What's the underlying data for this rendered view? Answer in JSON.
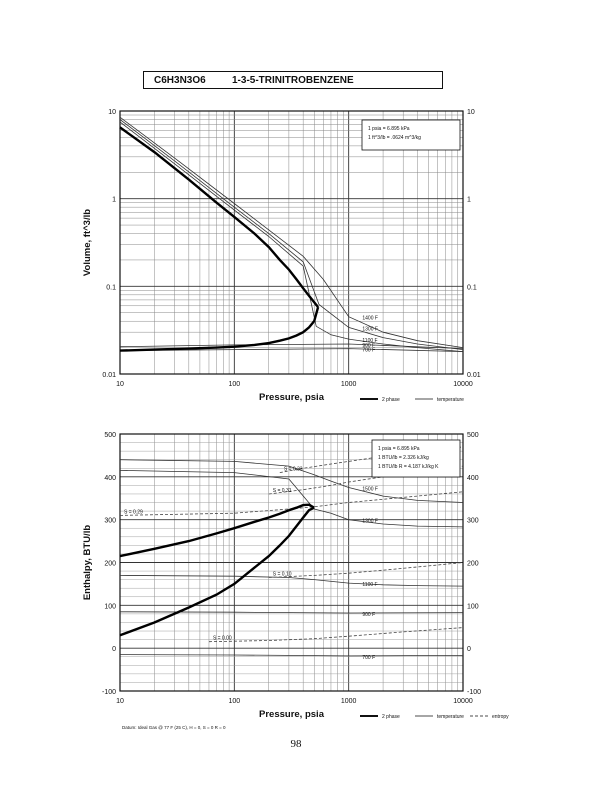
{
  "page": {
    "formula": "C6H3N3O6",
    "compound": "1-3-5-TRINITROBENZENE",
    "page_number": "98",
    "datum_note": "Datum: Ideal Gas @ 77 F (25 C), H = 0, S = 0 R = 0"
  },
  "chart_data": [
    {
      "type": "line",
      "chart": "volume",
      "xlabel": "Pressure, psia",
      "ylabel": "Volume, ft^3/lb",
      "xscale": "log",
      "yscale": "log",
      "xlim": [
        10,
        10000
      ],
      "ylim": [
        0.01,
        10
      ],
      "x_ticks": [
        "10",
        "100",
        "1000",
        "10000"
      ],
      "y_ticks_left": [
        "0.01",
        "0.1",
        "1",
        "10"
      ],
      "y_ticks_right": [
        "0.01",
        "0.1",
        "1",
        "10"
      ],
      "conversion_box": [
        "1 psia = 6.895 kPa",
        "1 ft^3/lb = .0624 m^3/kg"
      ],
      "legend": [
        "2 phase",
        "temperature"
      ],
      "saturation_dome": {
        "name": "2 phase",
        "x": [
          10,
          20,
          40,
          70,
          100,
          150,
          200,
          250,
          300,
          350,
          400,
          450,
          500,
          540
        ],
        "vapor_y": [
          6.5,
          3.4,
          1.65,
          0.9,
          0.62,
          0.4,
          0.28,
          0.2,
          0.155,
          0.12,
          0.095,
          0.078,
          0.066,
          0.058
        ],
        "liquid_y": [
          0.0185,
          0.019,
          0.0195,
          0.02,
          0.0205,
          0.0215,
          0.0225,
          0.024,
          0.0255,
          0.0275,
          0.03,
          0.034,
          0.04,
          0.058
        ]
      },
      "isotherms": [
        {
          "label": "1400 F",
          "x": [
            10,
            30,
            100,
            200,
            400,
            600,
            1000,
            2000,
            4000,
            10000
          ],
          "y": [
            8.5,
            2.9,
            0.88,
            0.44,
            0.22,
            0.12,
            0.045,
            0.03,
            0.024,
            0.02
          ]
        },
        {
          "label": "1300 F",
          "x": [
            10,
            30,
            100,
            200,
            400,
            550,
            1000,
            2000,
            4000,
            10000
          ],
          "y": [
            8.0,
            2.7,
            0.8,
            0.4,
            0.19,
            0.062,
            0.034,
            0.026,
            0.022,
            0.019
          ]
        },
        {
          "label": "1100 F",
          "x": [
            10,
            30,
            100,
            200,
            400,
            520,
            700,
            1000,
            2000,
            4000,
            10000
          ],
          "y": [
            7.5,
            2.5,
            0.74,
            0.37,
            0.17,
            0.035,
            0.028,
            0.025,
            0.022,
            0.02,
            0.018
          ]
        },
        {
          "label": "900 F",
          "x": [
            10,
            100,
            1000,
            10000
          ],
          "y": [
            0.0205,
            0.0215,
            0.022,
            0.0195
          ]
        },
        {
          "label": "700 F",
          "x": [
            10,
            100,
            1000,
            10000
          ],
          "y": [
            0.0185,
            0.019,
            0.0195,
            0.018
          ]
        }
      ]
    },
    {
      "type": "line",
      "chart": "enthalpy",
      "xlabel": "Pressure, psia",
      "ylabel": "Enthalpy, BTU/lb",
      "xscale": "log",
      "yscale": "linear",
      "xlim": [
        10,
        10000
      ],
      "ylim": [
        -100,
        500
      ],
      "x_ticks": [
        "10",
        "100",
        "1000",
        "10000"
      ],
      "y_ticks_left": [
        "-100",
        "0",
        "100",
        "200",
        "300",
        "400",
        "500"
      ],
      "y_ticks_right": [
        "-100",
        "0",
        "100",
        "200",
        "300",
        "400",
        "500"
      ],
      "conversion_box": [
        "1 psia = 6.895 kPa",
        "1 BTU/lb = 2.326 kJ/kg",
        "1 BTU/lb R = 4.187 kJ/kg K"
      ],
      "legend": [
        "2 phase",
        "temperature",
        "entropy"
      ],
      "saturation_dome": {
        "name": "2 phase",
        "x": [
          10,
          20,
          40,
          70,
          100,
          150,
          200,
          250,
          300,
          350,
          400,
          450,
          500
        ],
        "vapor_y": [
          215,
          232,
          250,
          268,
          280,
          295,
          305,
          314,
          322,
          328,
          334,
          335,
          328
        ],
        "liquid_y": [
          30,
          60,
          95,
          125,
          150,
          188,
          215,
          240,
          262,
          285,
          305,
          322,
          328
        ]
      },
      "isotherms": [
        {
          "label": "1500 F",
          "x": [
            10,
            100,
            300,
            500,
            700,
            1000,
            2000,
            4000,
            10000
          ],
          "y": [
            440,
            436,
            425,
            405,
            390,
            375,
            355,
            345,
            340
          ]
        },
        {
          "label": "1300 F",
          "x": [
            10,
            100,
            300,
            500,
            700,
            1000,
            2000,
            4000,
            10000
          ],
          "y": [
            415,
            410,
            395,
            325,
            315,
            300,
            290,
            285,
            283
          ]
        },
        {
          "label": "1100 F",
          "x": [
            10,
            100,
            300,
            500,
            1000,
            2000,
            4000,
            10000
          ],
          "y": [
            170,
            168,
            165,
            160,
            152,
            148,
            146,
            145
          ]
        },
        {
          "label": "900 F",
          "x": [
            10,
            100,
            1000,
            10000
          ],
          "y": [
            85,
            84,
            82,
            83
          ]
        },
        {
          "label": "700 F",
          "x": [
            10,
            100,
            1000,
            10000
          ],
          "y": [
            -15,
            -16,
            -18,
            -17
          ]
        }
      ],
      "isentropes": [
        {
          "label": "S = 0.33",
          "x": [
            250,
            400,
            700,
            1000,
            2000,
            5000,
            10000
          ],
          "y": [
            410,
            420,
            430,
            436,
            448,
            462,
            470
          ]
        },
        {
          "label": "S = 0.31",
          "x": [
            200,
            400,
            700,
            1000,
            2000,
            5000,
            10000
          ],
          "y": [
            360,
            370,
            380,
            388,
            400,
            415,
            425
          ]
        },
        {
          "label": "S = 0.29",
          "x": [
            10,
            100,
            300,
            500,
            1000,
            3000,
            10000
          ],
          "y": [
            310,
            315,
            325,
            330,
            340,
            352,
            365
          ]
        },
        {
          "label": "S = 0.10",
          "x": [
            200,
            500,
            1000,
            2000,
            5000,
            10000
          ],
          "y": [
            165,
            170,
            175,
            182,
            192,
            200
          ]
        },
        {
          "label": "S = 0.00",
          "x": [
            60,
            200,
            500,
            1000,
            3000,
            10000
          ],
          "y": [
            15,
            18,
            22,
            28,
            38,
            48
          ]
        }
      ]
    }
  ]
}
